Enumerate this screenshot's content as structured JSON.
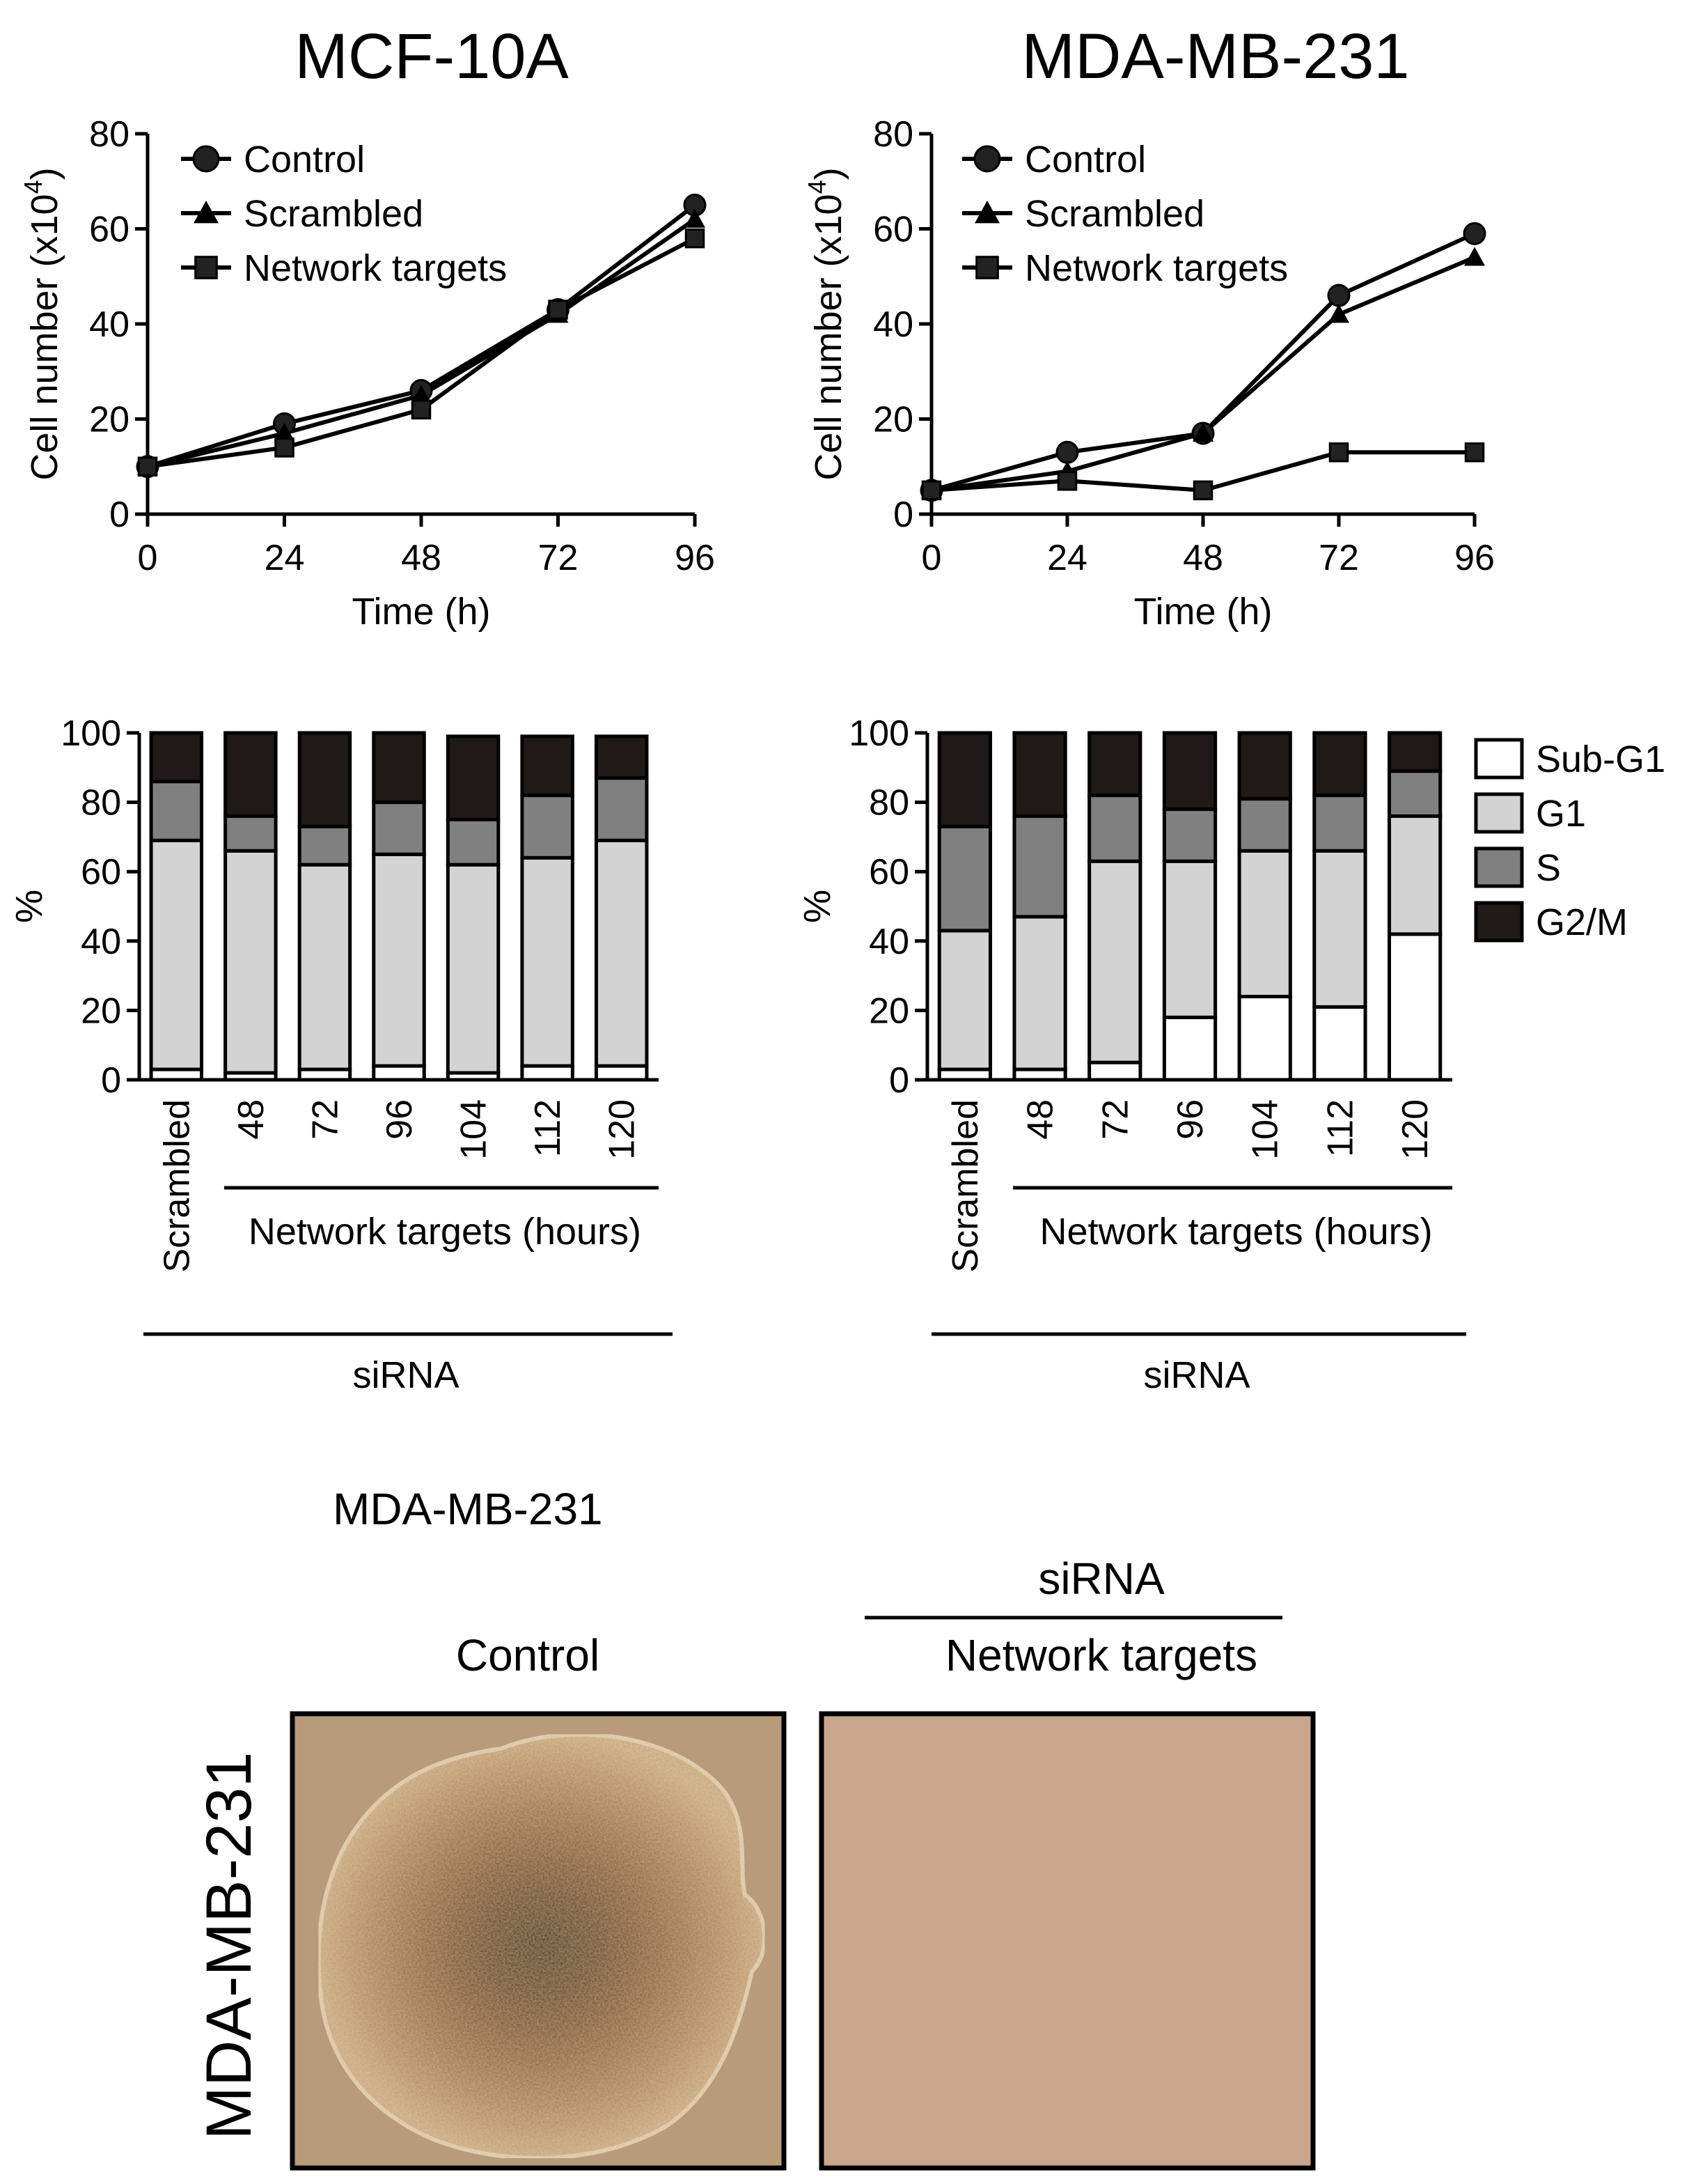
{
  "chart_data": [
    {
      "type": "line",
      "title": "MCF-10A",
      "xlabel": "Time (h)",
      "ylabel_main": "Cell number (x10",
      "ylabel_sup": "4",
      "ylabel_close": ")",
      "x": [
        0,
        24,
        48,
        72,
        96
      ],
      "xlim": [
        0,
        96
      ],
      "ylim": [
        0,
        80
      ],
      "yticks": [
        0,
        20,
        40,
        60,
        80
      ],
      "legend": "top-left",
      "series": [
        {
          "name": "Control",
          "marker": "circle",
          "values": [
            10,
            19,
            26,
            43,
            65
          ]
        },
        {
          "name": "Scrambled",
          "marker": "triangle",
          "values": [
            10,
            17,
            25,
            42,
            62
          ]
        },
        {
          "name": "Network targets",
          "marker": "square",
          "values": [
            10,
            14,
            22,
            43,
            58
          ]
        }
      ]
    },
    {
      "type": "line",
      "title": "MDA-MB-231",
      "xlabel": "Time (h)",
      "ylabel_main": "Cell number (x10",
      "ylabel_sup": "4",
      "ylabel_close": ")",
      "x": [
        0,
        24,
        48,
        72,
        96
      ],
      "xlim": [
        0,
        96
      ],
      "ylim": [
        0,
        80
      ],
      "yticks": [
        0,
        20,
        40,
        60,
        80
      ],
      "legend": "top-left",
      "series": [
        {
          "name": "Control",
          "marker": "circle",
          "values": [
            5,
            13,
            17,
            46,
            59
          ]
        },
        {
          "name": "Scrambled",
          "marker": "triangle",
          "values": [
            5,
            9,
            17,
            42,
            54
          ]
        },
        {
          "name": "Network targets",
          "marker": "square",
          "values": [
            5,
            7,
            5,
            13,
            13
          ]
        }
      ]
    },
    {
      "type": "bar",
      "stacked": true,
      "ylabel": "%",
      "ylim": [
        0,
        100
      ],
      "yticks": [
        0,
        20,
        40,
        60,
        80,
        100
      ],
      "categories": [
        "Scrambled",
        "48",
        "72",
        "96",
        "104",
        "112",
        "120"
      ],
      "group_label": "Network targets (hours)",
      "bottom_label": "siRNA",
      "series": [
        {
          "name": "Sub-G1",
          "values": [
            3,
            2,
            3,
            4,
            2,
            4,
            4
          ]
        },
        {
          "name": "G1",
          "values": [
            66,
            64,
            59,
            61,
            60,
            60,
            65
          ]
        },
        {
          "name": "S",
          "values": [
            17,
            10,
            11,
            15,
            13,
            18,
            18
          ]
        },
        {
          "name": "G2/M",
          "values": [
            14,
            24,
            27,
            20,
            24,
            17,
            12
          ]
        }
      ]
    },
    {
      "type": "bar",
      "stacked": true,
      "ylabel": "%",
      "ylim": [
        0,
        100
      ],
      "yticks": [
        0,
        20,
        40,
        60,
        80,
        100
      ],
      "categories": [
        "Scrambled",
        "48",
        "72",
        "96",
        "104",
        "112",
        "120"
      ],
      "group_label": "Network targets (hours)",
      "bottom_label": "siRNA",
      "legend": "right",
      "series": [
        {
          "name": "Sub-G1",
          "values": [
            3,
            3,
            5,
            18,
            24,
            21,
            42
          ]
        },
        {
          "name": "G1",
          "values": [
            40,
            44,
            58,
            45,
            42,
            45,
            34
          ]
        },
        {
          "name": "S",
          "values": [
            30,
            29,
            19,
            15,
            15,
            16,
            13
          ]
        },
        {
          "name": "G2/M",
          "values": [
            27,
            24,
            18,
            22,
            19,
            18,
            11
          ]
        }
      ]
    }
  ],
  "colors": {
    "subg1": "#ffffff",
    "g1": "#d3d3d3",
    "s": "#808080",
    "g2m": "#1f1a17",
    "photo_control_bg": "#b39573",
    "photo_control_spheroid": "#a8835e",
    "photo_control_core": "#4a2814",
    "photo_targets_bg": "#c8a58a"
  },
  "photos": {
    "title": "MDA-MB-231",
    "side_label": "MDA-MB-231",
    "control_label": "Control",
    "sirna_label": "siRNA",
    "targets_label": "Network targets"
  }
}
